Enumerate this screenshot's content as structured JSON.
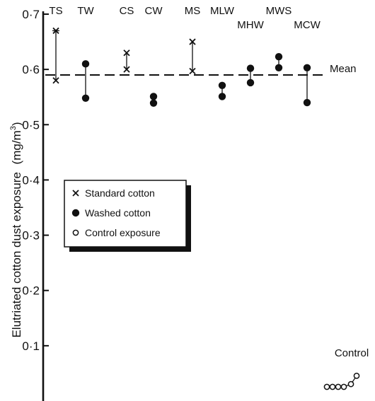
{
  "chart_data": {
    "type": "scatter",
    "ylabel_main": "Elutriated cotton dust exposure",
    "ylabel_unit": "(mg/m",
    "ylabel_sup": "3",
    "ylabel_close": ")",
    "ylim": [
      0,
      0.7
    ],
    "yticks": [
      0.1,
      0.2,
      0.3,
      0.4,
      0.5,
      0.6,
      0.7
    ],
    "ytick_labels": [
      "0·1",
      "0·2",
      "0·3",
      "0·4",
      "0·5",
      "0·6",
      "0·7"
    ],
    "mean": {
      "label": "Mean",
      "value": 0.59
    },
    "categories": [
      {
        "label": "TS",
        "marker": "cross",
        "values": [
          0.67,
          0.58
        ]
      },
      {
        "label": "TW",
        "marker": "filled",
        "values": [
          0.61,
          0.548
        ]
      },
      {
        "label": "CS",
        "marker": "cross",
        "values": [
          0.63,
          0.6
        ]
      },
      {
        "label": "CW",
        "marker": "filled",
        "values": [
          0.551,
          0.539
        ]
      },
      {
        "label": "MS",
        "marker": "cross",
        "values": [
          0.65,
          0.597
        ]
      },
      {
        "label": "MLW",
        "marker": "filled",
        "values": [
          0.571,
          0.551
        ]
      },
      {
        "label": "MHW",
        "marker": "filled",
        "values": [
          0.602,
          0.576
        ]
      },
      {
        "label": "MWS",
        "marker": "filled",
        "values": [
          0.623,
          0.603
        ]
      },
      {
        "label": "MCW",
        "marker": "filled",
        "values": [
          0.603,
          0.54
        ]
      }
    ],
    "legend": [
      {
        "marker": "cross",
        "label": "Standard cotton"
      },
      {
        "marker": "filled",
        "label": "Washed cotton"
      },
      {
        "marker": "open",
        "label": "Control exposure"
      }
    ],
    "control": {
      "label": "Control",
      "values": [
        0.0,
        0.0,
        0.0,
        0.0,
        0.005,
        0.02
      ]
    }
  }
}
